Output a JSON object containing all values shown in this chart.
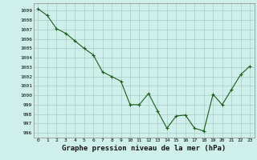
{
  "x": [
    0,
    1,
    2,
    3,
    4,
    5,
    6,
    7,
    8,
    9,
    10,
    11,
    12,
    13,
    14,
    15,
    16,
    17,
    18,
    19,
    20,
    21,
    22,
    23
  ],
  "y": [
    1009.2,
    1008.5,
    1007.1,
    1006.6,
    1005.8,
    1005.0,
    1004.3,
    1002.5,
    1002.0,
    1001.5,
    999.0,
    999.0,
    1000.2,
    998.3,
    996.5,
    997.8,
    997.9,
    996.5,
    996.2,
    1000.1,
    999.0,
    1000.6,
    1002.2,
    1003.1
  ],
  "line_color": "#1a5c1a",
  "marker_color": "#1a5c1a",
  "bg_color": "#cff0ea",
  "grid_color": "#a8ccc6",
  "xlabel": "Graphe pression niveau de la mer (hPa)",
  "xlabel_fontsize": 6.5,
  "ytick_labels": [
    996,
    997,
    998,
    999,
    1000,
    1001,
    1002,
    1003,
    1004,
    1005,
    1006,
    1007,
    1008,
    1009
  ],
  "ylim": [
    995.5,
    1009.8
  ],
  "xlim": [
    -0.5,
    23.5
  ],
  "xtick_labels": [
    "0",
    "1",
    "2",
    "3",
    "4",
    "5",
    "6",
    "7",
    "8",
    "9",
    "10",
    "11",
    "12",
    "13",
    "14",
    "15",
    "16",
    "17",
    "18",
    "19",
    "20",
    "21",
    "22",
    "23"
  ],
  "tick_fontsize": 4.5
}
